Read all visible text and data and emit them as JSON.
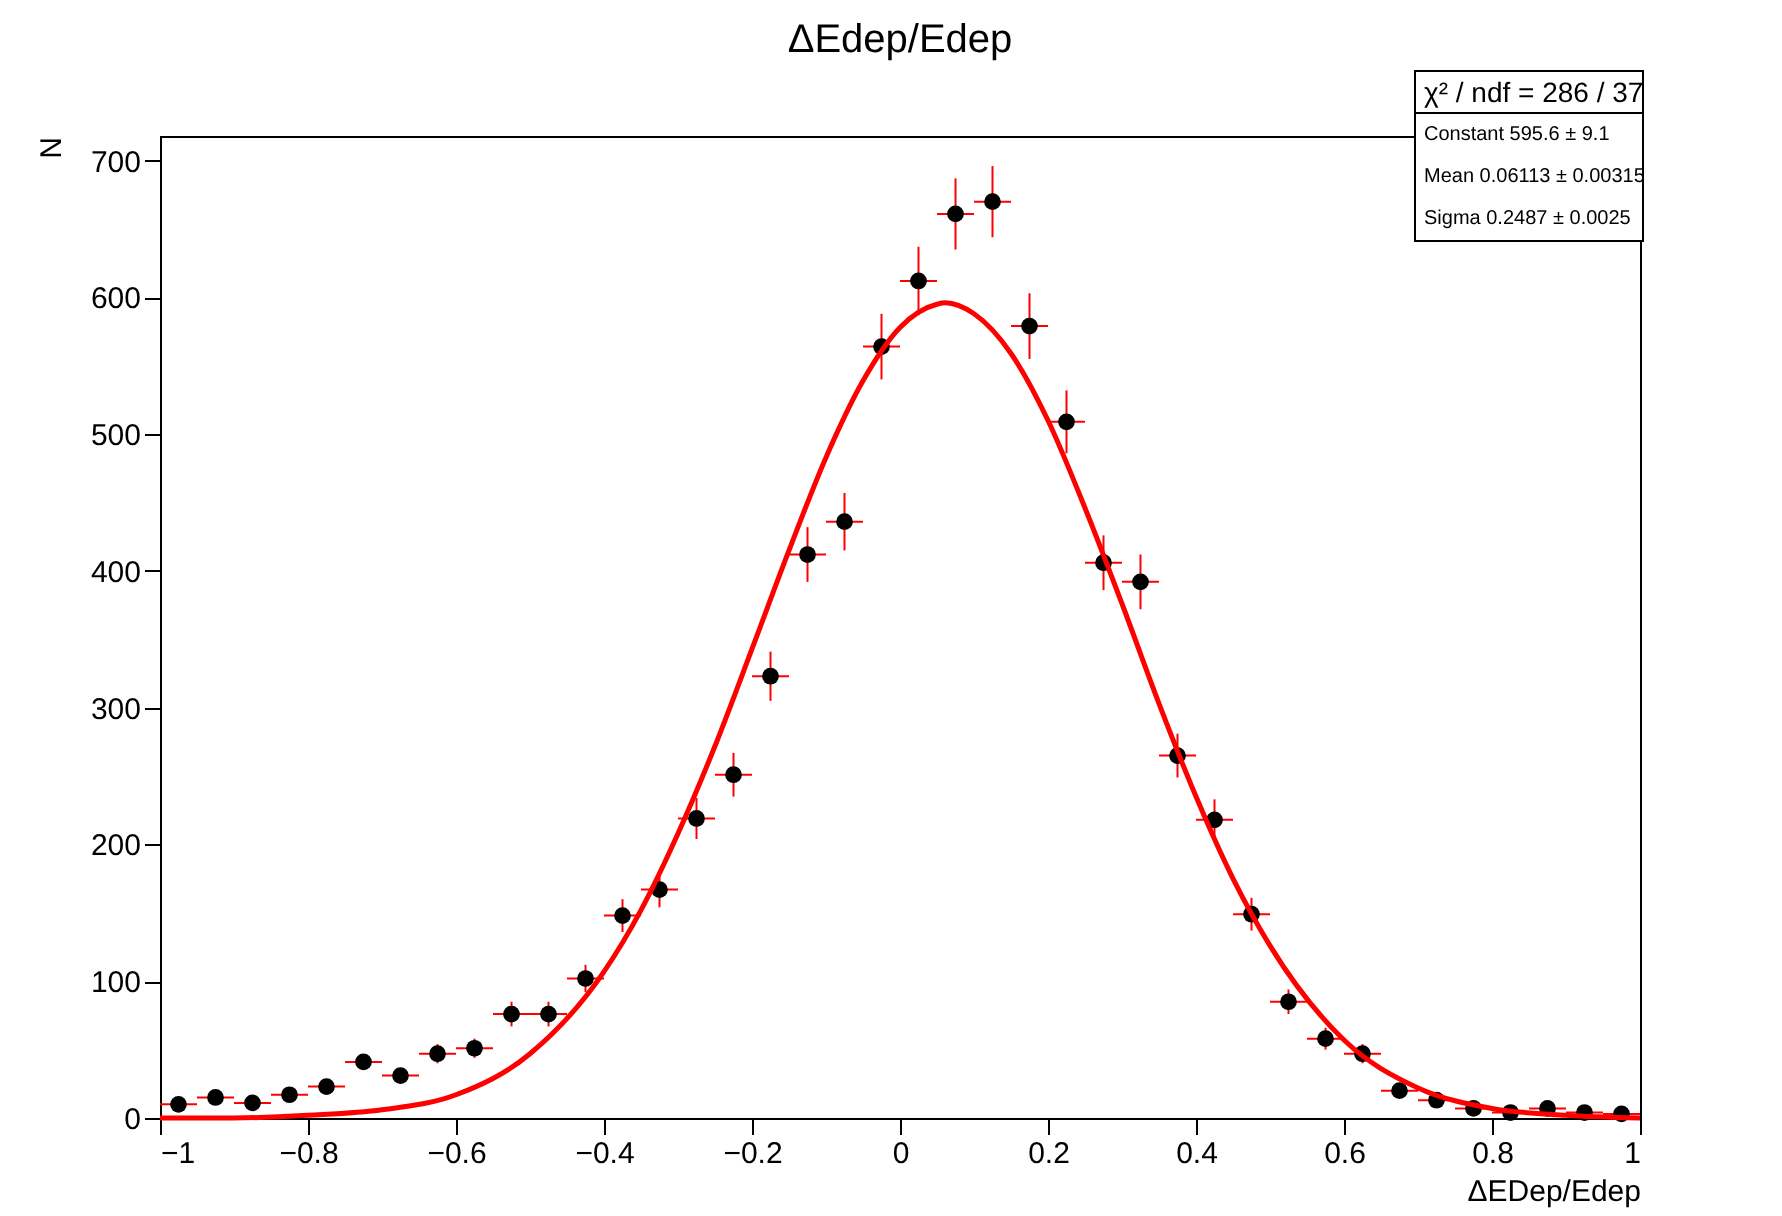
{
  "chart_data": {
    "type": "scatter",
    "title": "ΔEdep/Edep",
    "xlabel": "ΔEDep/Edep",
    "ylabel": "N",
    "xlim": [
      -1,
      1
    ],
    "ylim": [
      0,
      718
    ],
    "xticks": [
      -1,
      -0.8,
      -0.6,
      -0.4,
      -0.2,
      0,
      0.2,
      0.4,
      0.6,
      0.8,
      1
    ],
    "yticks": [
      0,
      100,
      200,
      300,
      400,
      500,
      600,
      700
    ],
    "annotations": [
      "χ² / ndf = 286 / 37",
      "Constant 595.6 ± 9.1",
      "Mean 0.06113 ± 0.00315",
      "Sigma 0.2487 ± 0.0025"
    ],
    "series": [
      {
        "color": "#000000",
        "marker": "circle",
        "x": [
          -0.975,
          -0.925,
          -0.875,
          -0.825,
          -0.775,
          -0.725,
          -0.675,
          -0.625,
          -0.575,
          -0.525,
          -0.475,
          -0.425,
          -0.375,
          -0.325,
          -0.275,
          -0.225,
          -0.175,
          -0.125,
          -0.075,
          -0.025,
          0.025,
          0.075,
          0.125,
          0.175,
          0.225,
          0.275,
          0.325,
          0.375,
          0.425,
          0.475,
          0.525,
          0.575,
          0.625,
          0.675,
          0.725,
          0.775,
          0.825,
          0.875,
          0.925,
          0.975
        ],
        "values": [
          10,
          15,
          11,
          17,
          23,
          41,
          31,
          47,
          51,
          76,
          76,
          102,
          148,
          167,
          219,
          251,
          323,
          412,
          436,
          564,
          612,
          661,
          670,
          579,
          509,
          406,
          392,
          265,
          218,
          149,
          85,
          58,
          47,
          20,
          13,
          7,
          4,
          7,
          4,
          3
        ],
        "errors": [
          null,
          null,
          null,
          null,
          null,
          null,
          null,
          7,
          7,
          9,
          9,
          10,
          12,
          13,
          15,
          16,
          18,
          20,
          21,
          24,
          25,
          26,
          26,
          24,
          23,
          20,
          20,
          16,
          15,
          12,
          9,
          8,
          7,
          4,
          4,
          3,
          2,
          3,
          2,
          2
        ],
        "xerrors": [
          0.025,
          0.025,
          0.025,
          0.025,
          0.025,
          0.025,
          0.025,
          0.025,
          0.025,
          0.025,
          0.025,
          0.025,
          0.025,
          0.025,
          0.025,
          0.025,
          0.025,
          0.025,
          0.025,
          0.025,
          0.025,
          0.025,
          0.025,
          0.025,
          0.025,
          0.025,
          0.025,
          0.025,
          0.025,
          0.025,
          0.025,
          0.025,
          0.025,
          0.025,
          0.025,
          0.025,
          0.025,
          0.025,
          0.025,
          0.025
        ]
      },
      {
        "type": "line",
        "color": "#ff0000",
        "line_style": "solid",
        "marker": "none",
        "x": [
          -1,
          -0.9,
          -0.8,
          -0.7,
          -0.6,
          -0.5,
          -0.4,
          -0.35,
          -0.3,
          -0.25,
          -0.2,
          -0.15,
          -0.1,
          -0.05,
          0,
          0.05,
          0.0611,
          0.1,
          0.15,
          0.2,
          0.25,
          0.3,
          0.35,
          0.4,
          0.45,
          0.5,
          0.6,
          0.7,
          0.8,
          0.9,
          1
        ],
        "values": [
          0,
          0,
          2,
          6,
          17,
          47,
          107,
          152,
          208,
          272,
          343,
          415,
          483,
          539,
          578,
          595,
          596,
          588,
          559,
          510,
          446,
          376,
          303,
          235,
          175,
          126,
          57,
          22,
          7,
          2,
          0
        ]
      }
    ]
  }
}
